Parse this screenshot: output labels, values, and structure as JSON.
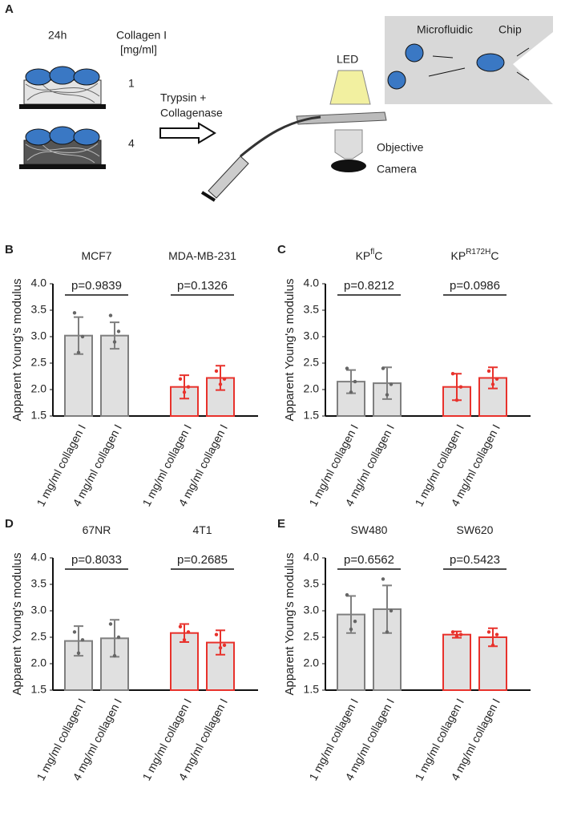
{
  "schematic": {
    "panel": "A",
    "time": "24h",
    "collagen_title": "Collagen I",
    "collagen_unit": "[mg/ml]",
    "conc_low": "1",
    "conc_high": "4",
    "treatment_line1": "Trypsin +",
    "treatment_line2": "Collagenase",
    "led": "LED",
    "chip_word1": "Microfluidic",
    "chip_word2": "Chip",
    "objective": "Objective",
    "camera": "Camera"
  },
  "chart_data": [
    {
      "type": "bar",
      "panel": "B",
      "groups": [
        {
          "name": "MCF7",
          "p_value": "p=0.9839"
        },
        {
          "name": "MDA-MB-231",
          "p_value": "p=0.1326"
        }
      ],
      "categories": [
        "1 mg/ml collagen I",
        "4 mg/ml collagen I",
        "1 mg/ml collagen I",
        "4 mg/ml collagen I"
      ],
      "values": [
        3.02,
        3.02,
        2.05,
        2.22
      ],
      "errors": [
        0.35,
        0.25,
        0.22,
        0.23
      ],
      "points": [
        [
          3.45,
          2.7,
          3.0
        ],
        [
          3.4,
          2.9,
          3.1
        ],
        [
          2.2,
          1.95,
          2.05
        ],
        [
          2.35,
          2.1,
          2.2
        ]
      ],
      "colors": [
        "#7f7f7f",
        "#7f7f7f",
        "#e8322c",
        "#e8322c"
      ],
      "fill": "#e0e0e0",
      "ylabel": "Apparent Young's modulus",
      "ylim": [
        1.5,
        4.0
      ],
      "yticks": [
        1.5,
        {
          "value": 2,
          "label": "2.0"
        },
        2.5,
        {
          "value": 3,
          "label": "3.0"
        },
        3.5,
        {
          "value": 4,
          "label": "4.0"
        }
      ]
    },
    {
      "type": "bar",
      "panel": "C",
      "groups": [
        {
          "name": "KP",
          "name_sup": "fl",
          "name_end": "C",
          "p_value": "p=0.8212"
        },
        {
          "name": "KP",
          "name_sup": "R172H",
          "name_end": "C",
          "p_value": "p=0.0986"
        }
      ],
      "categories": [
        "1 mg/ml collagen I",
        "4 mg/ml collagen I",
        "1 mg/ml collagen I",
        "4 mg/ml collagen I"
      ],
      "values": [
        2.15,
        2.12,
        2.05,
        2.22
      ],
      "errors": [
        0.22,
        0.3,
        0.25,
        0.2
      ],
      "points": [
        [
          2.4,
          1.95,
          2.15
        ],
        [
          2.4,
          1.9,
          2.1
        ],
        [
          2.3,
          1.8,
          2.05
        ],
        [
          2.35,
          2.1,
          2.2
        ]
      ],
      "colors": [
        "#7f7f7f",
        "#7f7f7f",
        "#e8322c",
        "#e8322c"
      ],
      "fill": "#e0e0e0",
      "ylabel": "Apparent Young's modulus",
      "ylim": [
        1.5,
        4.0
      ],
      "yticks": [
        1.5,
        {
          "value": 2,
          "label": "2.0"
        },
        2.5,
        {
          "value": 3,
          "label": "3.0"
        },
        3.5,
        {
          "value": 4,
          "label": "4.0"
        }
      ]
    },
    {
      "type": "bar",
      "panel": "D",
      "groups": [
        {
          "name": "67NR",
          "p_value": "p=0.8033"
        },
        {
          "name": "4T1",
          "p_value": "p=0.2685"
        }
      ],
      "categories": [
        "1 mg/ml collagen I",
        "4 mg/ml collagen I",
        "1 mg/ml collagen I",
        "4 mg/ml collagen I"
      ],
      "values": [
        2.43,
        2.48,
        2.58,
        2.4
      ],
      "errors": [
        0.28,
        0.35,
        0.17,
        0.23
      ],
      "points": [
        [
          2.6,
          2.2,
          2.45
        ],
        [
          2.75,
          2.15,
          2.5
        ],
        [
          2.7,
          2.45,
          2.6
        ],
        [
          2.55,
          2.3,
          2.35
        ]
      ],
      "colors": [
        "#7f7f7f",
        "#7f7f7f",
        "#e8322c",
        "#e8322c"
      ],
      "fill": "#e0e0e0",
      "ylabel": "Apparent Young's modulus",
      "ylim": [
        1.5,
        4.0
      ],
      "yticks": [
        1.5,
        {
          "value": 2,
          "label": "2.0"
        },
        2.5,
        {
          "value": 3,
          "label": "3.0"
        },
        3.5,
        {
          "value": 4,
          "label": "4.0"
        }
      ]
    },
    {
      "type": "bar",
      "panel": "E",
      "groups": [
        {
          "name": "SW480",
          "p_value": "p=0.6562"
        },
        {
          "name": "SW620",
          "p_value": "p=0.5423"
        }
      ],
      "categories": [
        "1 mg/ml collagen I",
        "4 mg/ml collagen I",
        "1 mg/ml collagen I",
        "4 mg/ml collagen I"
      ],
      "values": [
        2.93,
        3.03,
        2.55,
        2.5
      ],
      "errors": [
        0.35,
        0.45,
        0.06,
        0.17
      ],
      "points": [
        [
          3.3,
          2.65,
          2.8
        ],
        [
          3.6,
          2.6,
          3.0
        ],
        [
          2.6,
          2.52,
          2.55
        ],
        [
          2.6,
          2.35,
          2.55
        ]
      ],
      "colors": [
        "#7f7f7f",
        "#7f7f7f",
        "#e8322c",
        "#e8322c"
      ],
      "fill": "#e0e0e0",
      "ylabel": "Apparent Young's modulus",
      "ylim": [
        1.5,
        4.0
      ],
      "yticks": [
        1.5,
        {
          "value": 2,
          "label": "2.0"
        },
        2.5,
        {
          "value": 3,
          "label": "3.0"
        },
        3.5,
        {
          "value": 4,
          "label": "4.0"
        }
      ]
    }
  ]
}
